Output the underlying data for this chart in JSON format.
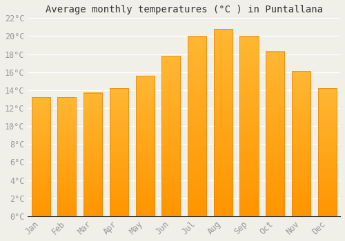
{
  "title": "Average monthly temperatures (°C ) in Puntallana",
  "months": [
    "Jan",
    "Feb",
    "Mar",
    "Apr",
    "May",
    "Jun",
    "Jul",
    "Aug",
    "Sep",
    "Oct",
    "Nov",
    "Dec"
  ],
  "values": [
    13.2,
    13.2,
    13.7,
    14.2,
    15.6,
    17.8,
    20.0,
    20.8,
    20.0,
    18.3,
    16.1,
    14.2
  ],
  "bar_color_top": "#FFB733",
  "bar_color_bottom": "#FF9500",
  "bar_edge_color": "#E8820A",
  "ylim": [
    0,
    22
  ],
  "ytick_step": 2,
  "background_color": "#f0efe8",
  "plot_bg_color": "#f0efe8",
  "grid_color": "#ffffff",
  "title_fontsize": 10,
  "tick_fontsize": 8.5,
  "tick_label_color": "#999999"
}
